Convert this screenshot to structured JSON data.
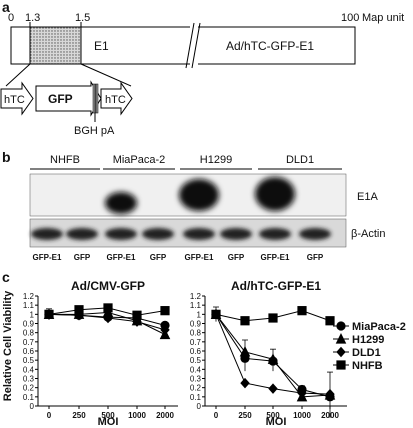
{
  "panel_a": {
    "label": "a",
    "ticks": [
      "0",
      "1.3",
      "1.5",
      "100"
    ],
    "map_unit": "Map unit",
    "e1": "E1",
    "construct": "Ad/hTC-GFP-E1",
    "cassette": {
      "left": "hTC",
      "gfp": "GFP",
      "right": "hTC",
      "pa": "BGH pA"
    }
  },
  "panel_b": {
    "label": "b",
    "cell_lines": [
      "NHFB",
      "MiaPaca-2",
      "H1299",
      "DLD1"
    ],
    "lanes": [
      "GFP-E1",
      "GFP",
      "GFP-E1",
      "GFP",
      "GFP-E1",
      "GFP",
      "GFP-E1",
      "GFP"
    ],
    "e1a_label": "E1A",
    "actin_label": "β-Actin"
  },
  "panel_c": {
    "label": "c",
    "ylabel": "Relative Cell Viability",
    "legend": [
      "MiaPaca-2",
      "H1299",
      "DLD1",
      "NHFB"
    ],
    "colors": {
      "line": "#000000"
    }
  },
  "chart_data": [
    {
      "type": "line",
      "title": "Ad/CMV-GFP",
      "xlabel": "MOI",
      "ylabel": "Relative Cell Viability",
      "categories": [
        "0",
        "250",
        "500",
        "1000",
        "2000"
      ],
      "yticks": [
        "0",
        "0.1",
        "0.2",
        "0.3",
        "0.4",
        "0.5",
        "0.6",
        "0.7",
        "0.8",
        "0.9",
        "1",
        "1.1",
        "1.2"
      ],
      "ylim": [
        0,
        1.2
      ],
      "series": [
        {
          "name": "MiaPaca-2",
          "marker": "circle",
          "values": [
            1.0,
            0.99,
            0.97,
            0.96,
            0.88
          ]
        },
        {
          "name": "H1299",
          "marker": "triangle",
          "values": [
            1.0,
            1.0,
            1.02,
            0.93,
            0.78
          ]
        },
        {
          "name": "DLD1",
          "marker": "diamond",
          "values": [
            1.0,
            0.99,
            0.96,
            0.92,
            0.83
          ]
        },
        {
          "name": "NHFB",
          "marker": "square",
          "values": [
            1.0,
            1.05,
            1.07,
            0.99,
            1.04
          ]
        }
      ]
    },
    {
      "type": "line",
      "title": "Ad/hTC-GFP-E1",
      "xlabel": "MOI",
      "categories": [
        "0",
        "250",
        "500",
        "1000",
        "2000"
      ],
      "yticks": [
        "0",
        "0.1",
        "0.2",
        "0.3",
        "0.4",
        "0.5",
        "0.6",
        "0.7",
        "0.8",
        "0.9",
        "1",
        "1.1",
        "1.2"
      ],
      "ylim": [
        0,
        1.2
      ],
      "legend_position": "right",
      "series": [
        {
          "name": "MiaPaca-2",
          "marker": "circle",
          "values": [
            1.0,
            0.52,
            0.49,
            0.18,
            0.1
          ]
        },
        {
          "name": "H1299",
          "marker": "triangle",
          "values": [
            1.0,
            0.59,
            0.51,
            0.1,
            0.12
          ]
        },
        {
          "name": "DLD1",
          "marker": "diamond",
          "values": [
            1.0,
            0.25,
            0.19,
            0.14,
            0.13
          ]
        },
        {
          "name": "NHFB",
          "marker": "square",
          "values": [
            1.0,
            0.93,
            0.96,
            1.04,
            0.93
          ]
        }
      ]
    }
  ]
}
